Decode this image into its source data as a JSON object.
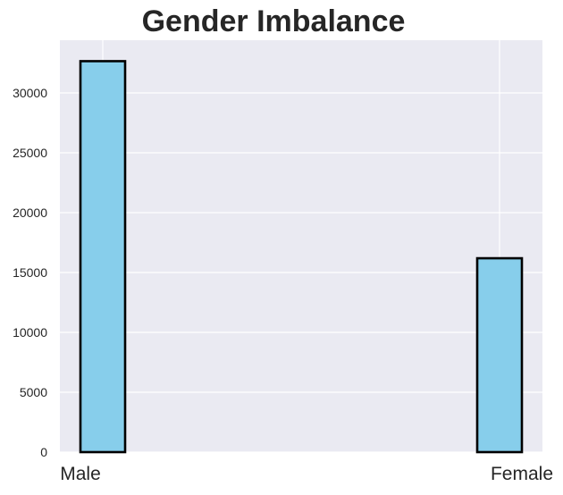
{
  "chart_data": {
    "type": "bar",
    "title": "Gender Imbalance",
    "categories": [
      "Male",
      "Female"
    ],
    "values": [
      32650,
      16190
    ],
    "xlabel": "",
    "ylabel": "",
    "ylim": [
      0,
      34400
    ],
    "yticks": [
      0,
      5000,
      10000,
      15000,
      20000,
      25000,
      30000
    ],
    "ytick_labels": [
      "0",
      "5000",
      "10000",
      "15000",
      "20000",
      "25000",
      "30000"
    ],
    "grid": true,
    "legend": "none",
    "colors": {
      "bar_fill": "#87ceeb",
      "bar_edge": "#000000",
      "plot_background": "#eaeaf2",
      "grid": "#ffffff",
      "text": "#262626"
    }
  }
}
